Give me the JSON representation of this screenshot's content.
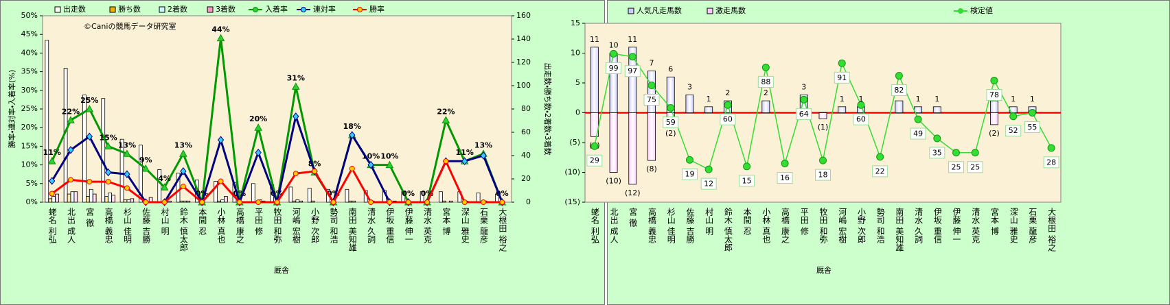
{
  "chart_data": [
    {
      "type": "bar",
      "watermark": "©Caniの競馬データ研究室",
      "x_label": "厩舎",
      "y_label": "勝率・連対率・入着率(%)",
      "y2_label": "出走数・勝ち数・2着数・3着数",
      "categories": [
        "蛯名 利弘",
        "北出 成人",
        "宮 徹",
        "高橋 義忠",
        "杉山 佳明",
        "佐藤 吉勝",
        "村山 明",
        "鈴木 慎太郎",
        "本間 忍",
        "小林 真也",
        "高橋 康之",
        "平田 修",
        "牧田 和弥",
        "河嶋 宏樹",
        "小野 次郎",
        "勢司 和浩",
        "南田 美知雄",
        "清水 久詞",
        "伊坂 重信",
        "伊藤 伸一",
        "清水 英克",
        "宮本 博",
        "深山 雅史",
        "石栗 龍彦",
        "大根田 裕之"
      ],
      "ylim": [
        0,
        50
      ],
      "yticks": [
        {
          "value": 0,
          "label": "0%"
        },
        {
          "value": 5,
          "label": "5%"
        },
        {
          "value": 10,
          "label": "10%"
        },
        {
          "value": 15,
          "label": "15%"
        },
        {
          "value": 20,
          "label": "20%"
        },
        {
          "value": 25,
          "label": "25%"
        },
        {
          "value": 30,
          "label": "30%"
        },
        {
          "value": 35,
          "label": "35%"
        },
        {
          "value": 40,
          "label": "40%"
        },
        {
          "value": 45,
          "label": "45%"
        },
        {
          "value": 50,
          "label": "50%"
        }
      ],
      "y2lim": [
        0,
        160
      ],
      "y2ticks": [
        0,
        20,
        40,
        60,
        80,
        100,
        120,
        140,
        160
      ],
      "series": [
        {
          "name": "出走数",
          "kind": "bar",
          "axis": "y2",
          "color": "#ffffff",
          "values": [
            139,
            115,
            92,
            89,
            54,
            49,
            28,
            25,
            19,
            18,
            17,
            16,
            15,
            13,
            12,
            11,
            11,
            10,
            10,
            9,
            9,
            9,
            9,
            8,
            7
          ]
        },
        {
          "name": "勝ち数",
          "kind": "bar",
          "axis": "y2",
          "color": "#f2b000",
          "values": [
            3,
            7,
            5,
            5,
            2,
            0,
            0,
            1,
            0,
            1,
            0,
            0,
            0,
            1,
            1,
            0,
            1,
            0,
            0,
            0,
            0,
            1,
            0,
            0,
            0
          ]
        },
        {
          "name": "2着数",
          "kind": "bar",
          "axis": "y2",
          "color": "#ccf5ff",
          "values": [
            5,
            9,
            11,
            8,
            2,
            0,
            0,
            1,
            0,
            2,
            0,
            2,
            0,
            2,
            0,
            0,
            1,
            1,
            0,
            0,
            0,
            0,
            1,
            1,
            0
          ]
        },
        {
          "name": "3着数",
          "kind": "bar",
          "axis": "y2",
          "color": "#ff99cc",
          "values": [
            7,
            9,
            7,
            6,
            3,
            4,
            1,
            1,
            0,
            5,
            0,
            1,
            0,
            1,
            0,
            0,
            0,
            0,
            1,
            0,
            0,
            1,
            0,
            0,
            0
          ]
        },
        {
          "name": "入着率",
          "kind": "line",
          "color": "#009900",
          "marker": "triangle",
          "marker_color": "#33cc33",
          "values": [
            11,
            22,
            25,
            15,
            13,
            9,
            4,
            13,
            0,
            44,
            0,
            20,
            0,
            31,
            8,
            0,
            18,
            10,
            10,
            0,
            0,
            22,
            11,
            13,
            0
          ],
          "value_labels": [
            "11%",
            "22%",
            "25%",
            "15%",
            "13%",
            "9%",
            "4%",
            "13%",
            "0%",
            "44%",
            "0%",
            "20%",
            "0%",
            "31%",
            "8%",
            "0%",
            "18%",
            "10%",
            "10%",
            "0%",
            "0%",
            "22%",
            "11%",
            "13%",
            "0%"
          ]
        },
        {
          "name": "連対率",
          "kind": "line",
          "color": "#000080",
          "marker": "diamond",
          "marker_color": "#33ccff",
          "values": [
            5.7,
            14,
            17.6,
            8,
            7.5,
            0,
            0,
            8.3,
            0,
            16.7,
            0,
            13.3,
            0,
            23,
            8.3,
            0,
            18,
            10,
            0,
            0,
            0,
            11,
            11,
            12.5,
            0
          ]
        },
        {
          "name": "勝率",
          "kind": "line",
          "color": "#ff0000",
          "marker": "circle",
          "marker_color": "#ffcc00",
          "values": [
            2.3,
            6,
            5.5,
            5.5,
            3.8,
            0,
            0,
            4.2,
            0,
            5.6,
            0,
            0,
            0,
            7.7,
            8.3,
            0,
            9,
            0,
            0,
            0,
            0,
            11,
            0,
            0,
            0
          ]
        }
      ]
    },
    {
      "type": "bar",
      "x_label": "厩舎",
      "categories": [
        "蛯名 利弘",
        "北出 成人",
        "宮 徹",
        "高橋 義忠",
        "杉山 佳明",
        "佐藤 吉勝",
        "村山 明",
        "鈴木 慎太郎",
        "本間 忍",
        "小林 真也",
        "高橋 康之",
        "平田 修",
        "牧田 和弥",
        "河嶋 宏樹",
        "小野 次郎",
        "勢司 和浩",
        "南田 美知雄",
        "清水 久詞",
        "伊坂 重信",
        "伊藤 伸一",
        "清水 英克",
        "宮本 博",
        "深山 雅史",
        "石栗 龍彦",
        "大根田 裕之"
      ],
      "ylim": [
        -15,
        15
      ],
      "yticks": [
        15,
        10,
        5,
        0,
        {
          "value": -5,
          "label": "(5)"
        },
        {
          "value": -10,
          "label": "(10)"
        },
        {
          "value": -15,
          "label": "(15)"
        }
      ],
      "zero_line": "#ff0000",
      "series": [
        {
          "name": "人気凡走馬数",
          "kind": "bar",
          "color": "#ccccff",
          "show_values": true,
          "label_color": "#000000",
          "values": [
            11,
            10,
            11,
            7,
            6,
            3,
            1,
            2,
            0,
            2,
            0,
            3,
            0,
            1,
            1,
            0,
            2,
            1,
            1,
            0,
            0,
            2,
            1,
            1,
            0
          ]
        },
        {
          "name": "激走馬数",
          "kind": "bar",
          "color": "#ffccff",
          "label_color": "#ff0000",
          "values": [
            -4,
            -10,
            -12,
            -8,
            -2,
            0,
            0,
            0,
            0,
            0,
            0,
            0,
            -1,
            0,
            0,
            0,
            0,
            0,
            0,
            0,
            0,
            -2,
            0,
            0,
            0
          ],
          "value_labels": [
            "(4)",
            "(10)",
            "(12)",
            "(8)",
            "(2)",
            null,
            null,
            null,
            null,
            null,
            null,
            null,
            "(1)",
            null,
            null,
            null,
            null,
            null,
            null,
            null,
            null,
            "(2)",
            null,
            null,
            null
          ]
        },
        {
          "name": "検定値",
          "kind": "line",
          "color": "#33dd33",
          "marker": "circle",
          "marker_color": "#33dd33",
          "values": [
            -5.6,
            9.9,
            9.4,
            4.6,
            0.8,
            -7.9,
            -9.5,
            1.3,
            -9,
            7.6,
            -8.5,
            2.2,
            -8,
            8.3,
            1.3,
            -7.4,
            6.2,
            -1.1,
            -4.3,
            -6.7,
            -6.7,
            5.4,
            -0.6,
            0,
            -5.9
          ],
          "scores": [
            29,
            99,
            97,
            75,
            59,
            19,
            12,
            60,
            15,
            88,
            16,
            64,
            18,
            91,
            60,
            22,
            82,
            49,
            35,
            25,
            25,
            78,
            52,
            55,
            28
          ]
        }
      ]
    }
  ]
}
